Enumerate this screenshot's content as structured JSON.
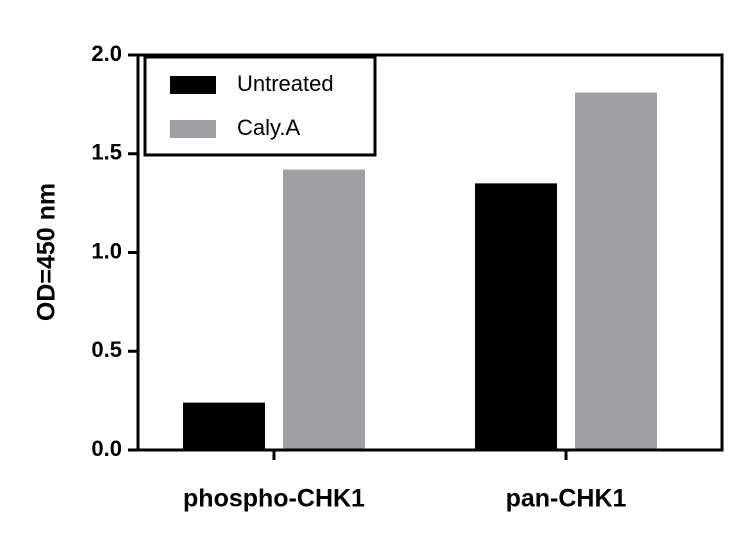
{
  "chart_data": {
    "type": "bar",
    "y_label": "OD=450 nm",
    "categories": [
      "phospho-CHK1",
      "pan-CHK1"
    ],
    "series": [
      {
        "name": "Untreated",
        "color": "#000000",
        "values": [
          0.24,
          1.35
        ]
      },
      {
        "name": "Caly.A",
        "color": "#a0a0a2",
        "values": [
          1.42,
          1.81
        ]
      }
    ],
    "ylim": [
      0,
      2
    ],
    "yticks": [
      {
        "value": 0,
        "label": "0.0"
      },
      0.5,
      {
        "value": 1,
        "label": "1.0"
      },
      1.5,
      {
        "value": 2,
        "label": "2.0"
      }
    ],
    "legend": "upper left"
  }
}
